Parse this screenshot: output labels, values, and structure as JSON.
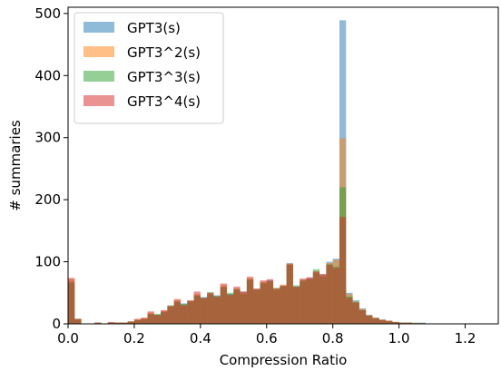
{
  "chart_data": {
    "type": "histogram",
    "title": "",
    "xlabel": "Compression Ratio",
    "ylabel": "# summaries",
    "xlim": [
      0.0,
      1.3
    ],
    "ylim": [
      0,
      510
    ],
    "xticks": [
      0.0,
      0.2,
      0.4,
      0.6,
      0.8,
      1.0,
      1.2
    ],
    "xtick_labels": [
      "0.0",
      "0.2",
      "0.4",
      "0.6",
      "0.8",
      "1.0",
      "1.2"
    ],
    "yticks": [
      0,
      100,
      200,
      300,
      400,
      500
    ],
    "ytick_labels": [
      "0",
      "100",
      "200",
      "300",
      "400",
      "500"
    ],
    "bin_start": 0.0,
    "bin_width": 0.02,
    "grid": false,
    "legend_position": "top-left",
    "series": [
      {
        "name": "GPT3(s)",
        "color": "#1f77b4",
        "values": [
          65,
          8,
          0,
          0,
          2,
          0,
          2,
          2,
          2,
          3,
          6,
          8,
          15,
          15,
          20,
          28,
          35,
          33,
          36,
          45,
          43,
          47,
          46,
          58,
          48,
          54,
          52,
          70,
          55,
          65,
          70,
          55,
          60,
          98,
          60,
          68,
          74,
          82,
          80,
          100,
          105,
          489,
          50,
          38,
          25,
          14,
          10,
          7,
          4,
          3,
          2,
          2,
          1,
          2,
          0
        ]
      },
      {
        "name": "GPT3^2(s)",
        "color": "#ff7f0e",
        "values": [
          72,
          8,
          0,
          0,
          2,
          0,
          2,
          2,
          2,
          3,
          7,
          9,
          18,
          14,
          21,
          27,
          38,
          31,
          36,
          48,
          40,
          49,
          43,
          62,
          45,
          57,
          50,
          73,
          54,
          68,
          67,
          56,
          63,
          97,
          58,
          70,
          73,
          85,
          78,
          98,
          103,
          299,
          48,
          36,
          24,
          13,
          10,
          7,
          5,
          3,
          2,
          2,
          1,
          1,
          0
        ]
      },
      {
        "name": "GPT3^3(s)",
        "color": "#2ca02c",
        "values": [
          68,
          8,
          0,
          0,
          2,
          0,
          2,
          2,
          2,
          4,
          6,
          8,
          16,
          16,
          19,
          30,
          36,
          32,
          37,
          46,
          42,
          51,
          45,
          60,
          50,
          56,
          48,
          72,
          56,
          66,
          69,
          58,
          61,
          95,
          62,
          71,
          72,
          88,
          76,
          96,
          92,
          220,
          44,
          35,
          22,
          14,
          9,
          6,
          5,
          3,
          2,
          2,
          2,
          1,
          0
        ]
      },
      {
        "name": "GPT3^4(s)",
        "color": "#d62728",
        "values": [
          74,
          8,
          0,
          0,
          2,
          0,
          3,
          2,
          2,
          4,
          8,
          10,
          20,
          14,
          22,
          29,
          40,
          30,
          38,
          52,
          42,
          50,
          44,
          65,
          47,
          60,
          52,
          76,
          57,
          70,
          72,
          57,
          62,
          96,
          60,
          73,
          75,
          84,
          80,
          95,
          90,
          172,
          42,
          34,
          22,
          14,
          9,
          6,
          5,
          3,
          2,
          2,
          1,
          1,
          0
        ]
      }
    ]
  }
}
